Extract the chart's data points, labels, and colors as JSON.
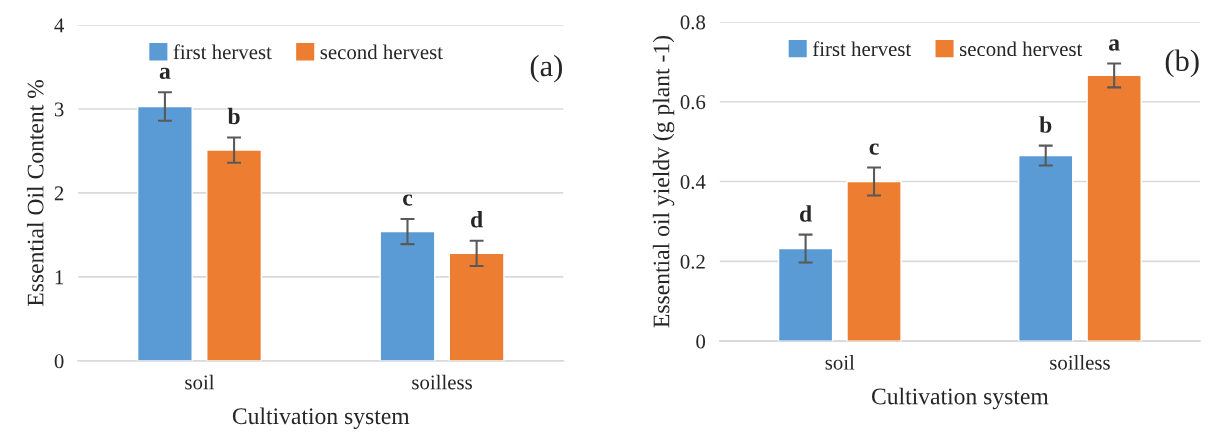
{
  "chart_data": [
    {
      "type": "bar",
      "categories": [
        "soil",
        "soilless"
      ],
      "xlabel": "Cultivation system",
      "ylabel": "Essential Oil Content %",
      "ylim": [
        0,
        4
      ],
      "yticks": [
        0,
        1,
        2,
        3,
        4
      ],
      "grid": "y",
      "legend": "top",
      "annotations": [
        "(a)"
      ],
      "series": [
        {
          "name": "first hervest",
          "color": "#5b9bd5",
          "values": [
            3.03,
            1.54
          ],
          "errors": [
            0.17,
            0.15
          ],
          "value_labels": [
            "a",
            "c"
          ]
        },
        {
          "name": "second hervest",
          "color": "#ed7d31",
          "values": [
            2.51,
            1.28
          ],
          "errors": [
            0.15,
            0.15
          ],
          "value_labels": [
            "b",
            "d"
          ]
        }
      ]
    },
    {
      "type": "bar",
      "categories": [
        "soil",
        "soilless"
      ],
      "xlabel": "Cultivation system",
      "ylabel": "Essential oil yieldv (g plant -1)",
      "ylim": [
        0,
        0.8
      ],
      "yticks": [
        0,
        0.2,
        0.4,
        0.6,
        0.8
      ],
      "grid": "y",
      "legend": "top",
      "annotations": [
        "(b)"
      ],
      "series": [
        {
          "name": "first hervest",
          "color": "#5b9bd5",
          "values": [
            0.232,
            0.465
          ],
          "errors": [
            0.035,
            0.025
          ],
          "value_labels": [
            "d",
            "b"
          ]
        },
        {
          "name": "second hervest",
          "color": "#ed7d31",
          "values": [
            0.4,
            0.666
          ],
          "errors": [
            0.035,
            0.03
          ],
          "value_labels": [
            "c",
            "a"
          ]
        }
      ]
    }
  ]
}
